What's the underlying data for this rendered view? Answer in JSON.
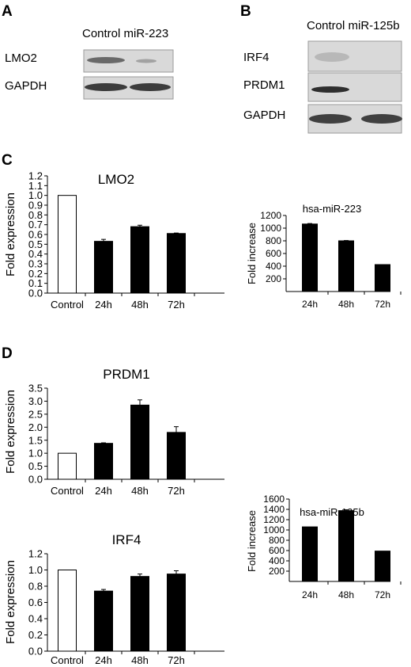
{
  "panels": {
    "A": {
      "letter": "A",
      "lane_header": "Control miR-223",
      "row_labels": [
        "LMO2",
        "GAPDH"
      ]
    },
    "B": {
      "letter": "B",
      "lane_header": "Control miR-125b",
      "row_labels": [
        "IRF4",
        "PRDM1",
        "GAPDH"
      ]
    },
    "C": {
      "letter": "C"
    },
    "D": {
      "letter": "D"
    }
  },
  "chart_data": [
    {
      "id": "lmo2",
      "type": "bar",
      "title": "LMO2",
      "ylabel": "Fold expression",
      "xlabel": "",
      "categories": [
        "Control",
        "24h",
        "48h",
        "72h"
      ],
      "values": [
        1.0,
        0.53,
        0.68,
        0.61
      ],
      "errors": [
        0,
        0.02,
        0.015,
        0.005
      ],
      "fills": [
        "white",
        "black",
        "black",
        "black"
      ],
      "ylim": [
        0,
        1.2
      ],
      "yticks": [
        "0.0",
        "0.1",
        "0.2",
        "0.3",
        "0.4",
        "0.5",
        "0.6",
        "0.7",
        "0.8",
        "0.9",
        "1.0",
        "1.1",
        "1.2"
      ],
      "grid": false
    },
    {
      "id": "mir223",
      "type": "bar",
      "title": "hsa-miR-223",
      "ylabel": "Fold increase",
      "xlabel": "",
      "categories": [
        "24h",
        "48h",
        "72h"
      ],
      "values": [
        1065,
        800,
        425
      ],
      "errors": [
        8,
        5,
        0
      ],
      "fills": [
        "black",
        "black",
        "black"
      ],
      "ylim": [
        0,
        1200
      ],
      "yticks": [
        "200",
        "400",
        "600",
        "800",
        "1000",
        "1200"
      ],
      "grid": false
    },
    {
      "id": "prdm1",
      "type": "bar",
      "title": "PRDM1",
      "ylabel": "Fold expression",
      "xlabel": "",
      "categories": [
        "Control",
        "24h",
        "48h",
        "72h"
      ],
      "values": [
        1.0,
        1.38,
        2.85,
        1.8
      ],
      "errors": [
        0,
        0.02,
        0.2,
        0.22
      ],
      "fills": [
        "white",
        "black",
        "black",
        "black"
      ],
      "ylim": [
        0,
        3.5
      ],
      "yticks": [
        "0.0",
        "0.5",
        "1.0",
        "1.5",
        "2.0",
        "2.5",
        "3.0",
        "3.5"
      ],
      "grid": false
    },
    {
      "id": "irf4",
      "type": "bar",
      "title": "IRF4",
      "ylabel": "Fold expression",
      "xlabel": "",
      "categories": [
        "Control",
        "24h",
        "48h",
        "72h"
      ],
      "values": [
        1.0,
        0.74,
        0.92,
        0.95
      ],
      "errors": [
        0,
        0.02,
        0.03,
        0.04
      ],
      "fills": [
        "white",
        "black",
        "black",
        "black"
      ],
      "ylim": [
        0,
        1.2
      ],
      "yticks": [
        "0.0",
        "0.2",
        "0.4",
        "0.6",
        "0.8",
        "1.0",
        "1.2"
      ],
      "grid": false
    },
    {
      "id": "mir125b",
      "type": "bar",
      "title": "hsa-miR-125b",
      "ylabel": "Fold increase",
      "xlabel": "",
      "categories": [
        "24h",
        "48h",
        "72h"
      ],
      "values": [
        1060,
        1375,
        590
      ],
      "errors": [
        0,
        18,
        0
      ],
      "fills": [
        "black",
        "black",
        "black"
      ],
      "ylim": [
        0,
        1600
      ],
      "yticks": [
        "200",
        "400",
        "600",
        "800",
        "1000",
        "1200",
        "1400",
        "1600"
      ],
      "grid": false
    }
  ]
}
